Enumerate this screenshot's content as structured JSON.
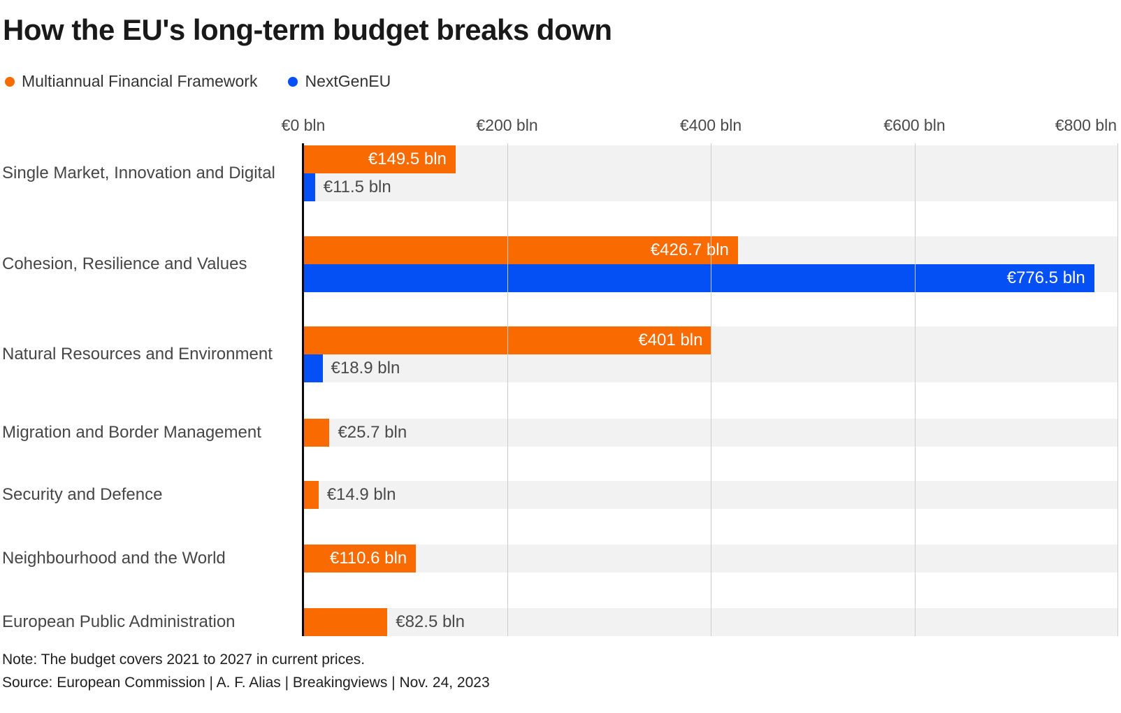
{
  "title": "How the EU's long-term budget breaks down",
  "legend": [
    {
      "label": "Multiannual Financial Framework",
      "color": "#f96a00"
    },
    {
      "label": "NextGenEU",
      "color": "#0450f5"
    }
  ],
  "colors": {
    "mff_orange": "#f96a00",
    "nextgeneu_blue": "#0450f5",
    "bar_track_gray": "#f2f2f2",
    "gridline_gray": "#cccccc",
    "axis_black": "#0a0a0a"
  },
  "chart_data": {
    "type": "bar",
    "orientation": "horizontal",
    "title": "How the EU's long-term budget breaks down",
    "unit": "€ bln",
    "xlim": [
      0,
      800
    ],
    "x_ticks": [
      "€0 bln",
      "€200 bln",
      "€400 bln",
      "€600 bln",
      "€800 bln"
    ],
    "grid": true,
    "legend_position": "top-left",
    "categories": [
      "Single Market, Innovation and Digital",
      "Cohesion, Resilience and Values",
      "Natural Resources and Environment",
      "Migration and Border Management",
      "Security and Defence",
      "Neighbourhood and the World",
      "European Public Administration"
    ],
    "series": [
      {
        "name": "Multiannual Financial Framework",
        "key": "mff",
        "color": "#f96a00",
        "values": [
          149.5,
          426.7,
          401,
          25.7,
          14.9,
          110.6,
          82.5
        ],
        "value_labels": [
          "€149.5 bln",
          "€426.7 bln",
          "€401 bln",
          "€25.7 bln",
          "€14.9 bln",
          "€110.6 bln",
          "€82.5 bln"
        ]
      },
      {
        "name": "NextGenEU",
        "key": "nextgeneu",
        "color": "#0450f5",
        "values": [
          11.5,
          776.5,
          18.9,
          null,
          null,
          null,
          null
        ],
        "value_labels": [
          "€11.5 bln",
          "€776.5 bln",
          "€18.9 bln",
          null,
          null,
          null,
          null
        ]
      }
    ]
  },
  "note": "Note: The budget covers 2021 to 2027 in current prices.",
  "source": "Source: European Commission | A. F. Alias | Breakingviews | Nov. 24, 2023"
}
